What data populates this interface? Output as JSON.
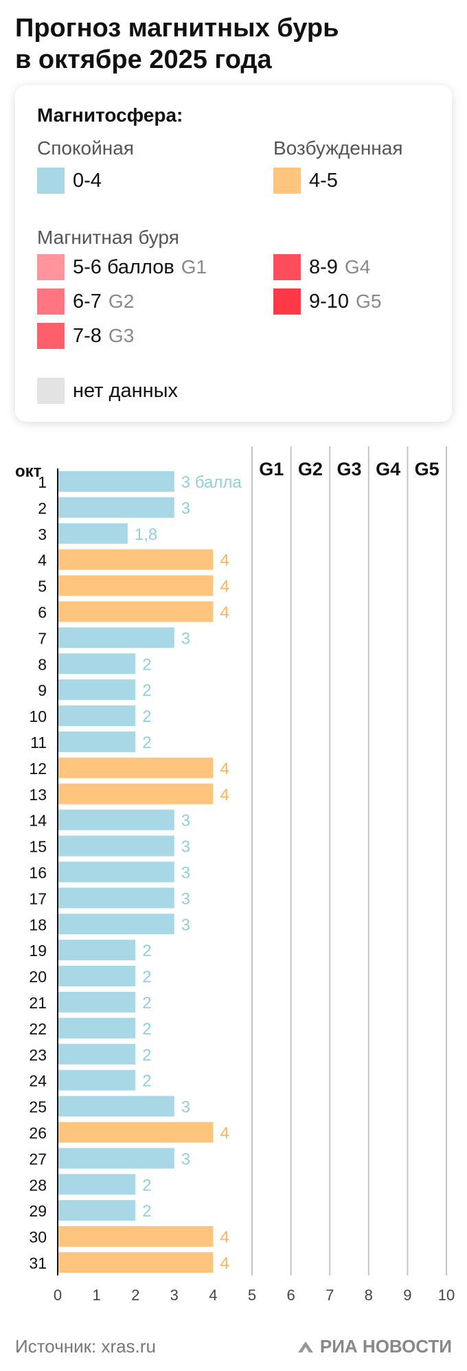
{
  "title": {
    "line1": "Прогноз магнитных бурь",
    "line2": "в октябре 2025 года"
  },
  "legend": {
    "heading": "Магнитосфера:",
    "calm": {
      "label": "Спокойная",
      "range": "0-4",
      "color": "#a8d8e6"
    },
    "excited": {
      "label": "Возбужденная",
      "range": "4-5",
      "color": "#ffc47d"
    },
    "storm_label": "Магнитная буря",
    "storms": [
      {
        "range": "5-6 баллов",
        "code": "G1",
        "color": "#ff949d"
      },
      {
        "range": "6-7",
        "code": "G2",
        "color": "#ff7582"
      },
      {
        "range": "7-8",
        "code": "G3",
        "color": "#ff5e6b"
      },
      {
        "range": "8-9",
        "code": "G4",
        "color": "#ff4d5b"
      },
      {
        "range": "9-10",
        "code": "G5",
        "color": "#ff3848"
      }
    ],
    "no_data": {
      "label": "нет данных",
      "color": "#e3e3e3"
    }
  },
  "chart_data": {
    "type": "bar",
    "orientation": "horizontal",
    "category_header": "окт",
    "categories": [
      "1",
      "2",
      "3",
      "4",
      "5",
      "6",
      "7",
      "8",
      "9",
      "10",
      "11",
      "12",
      "13",
      "14",
      "15",
      "16",
      "17",
      "18",
      "19",
      "20",
      "21",
      "22",
      "23",
      "24",
      "25",
      "26",
      "27",
      "28",
      "29",
      "30",
      "31"
    ],
    "values": [
      3,
      3,
      1.8,
      4,
      4,
      4,
      3,
      2,
      2,
      2,
      2,
      4,
      4,
      3,
      3,
      3,
      3,
      3,
      2,
      2,
      2,
      2,
      2,
      2,
      3,
      4,
      3,
      2,
      2,
      4,
      4
    ],
    "value_labels": [
      "3 балла",
      "3",
      "1,8",
      "4",
      "4",
      "4",
      "3",
      "2",
      "2",
      "2",
      "2",
      "4",
      "4",
      "3",
      "3",
      "3",
      "3",
      "3",
      "2",
      "2",
      "2",
      "2",
      "2",
      "2",
      "3",
      "4",
      "3",
      "2",
      "2",
      "4",
      "4"
    ],
    "colors": {
      "calm": "#a8d8e6",
      "excited": "#ffc47d",
      "calm_text": "#90cfe0",
      "excited_text": "#ffb25c"
    },
    "xlim": [
      0,
      10
    ],
    "x_ticks": [
      "0",
      "1",
      "2",
      "3",
      "4",
      "5",
      "6",
      "7",
      "8",
      "9",
      "10"
    ],
    "storm_columns": [
      {
        "label": "G1",
        "from": 5,
        "to": 6
      },
      {
        "label": "G2",
        "from": 6,
        "to": 7
      },
      {
        "label": "G3",
        "from": 7,
        "to": 8
      },
      {
        "label": "G4",
        "from": 8,
        "to": 9
      },
      {
        "label": "G5",
        "from": 9,
        "to": 10
      }
    ],
    "grid": true
  },
  "footer": {
    "source": "Источник: xras.ru",
    "logo": "РИА НОВОСТИ"
  }
}
